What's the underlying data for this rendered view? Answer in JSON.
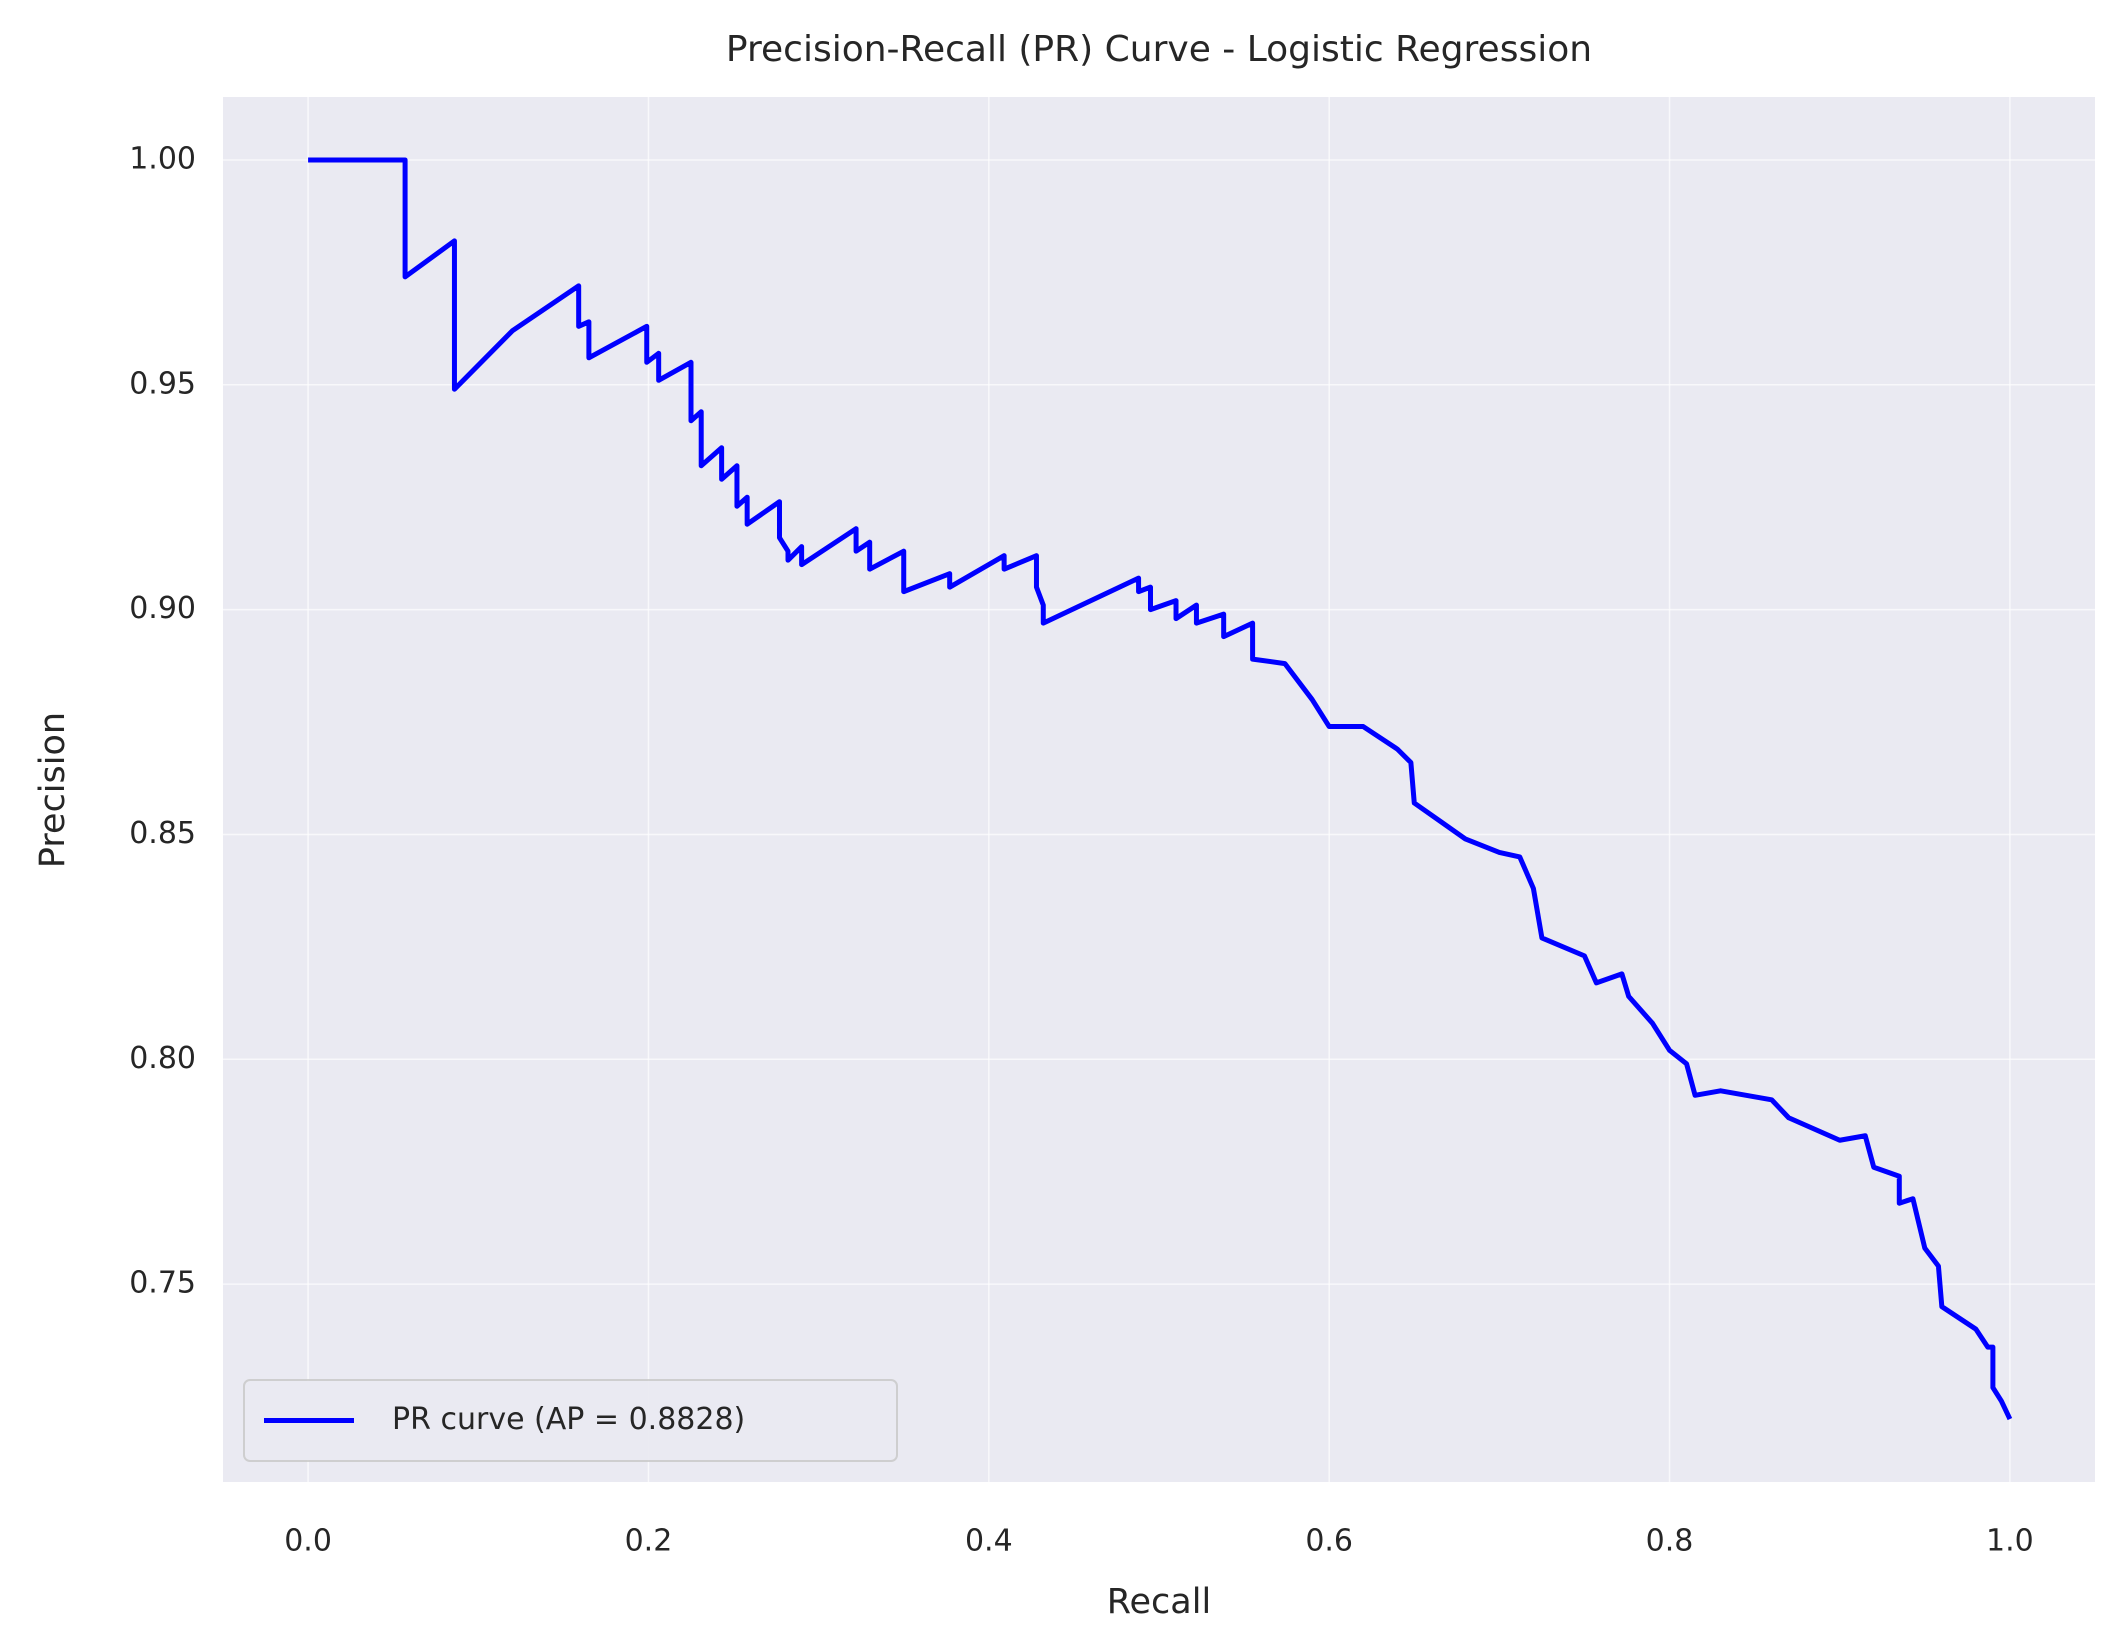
{
  "chart_data": {
    "type": "line",
    "title": "Precision-Recall (PR) Curve - Logistic Regression",
    "xlabel": "Recall",
    "ylabel": "Precision",
    "xlim": [
      -0.05,
      1.05
    ],
    "ylim": [
      0.706,
      1.014
    ],
    "xticks": [
      {
        "value": 0,
        "label": "0.0"
      },
      0.2,
      0.4,
      0.6,
      0.8,
      {
        "value": 1,
        "label": "1.0"
      }
    ],
    "yticks": [
      {
        "value": 0.75,
        "label": "0.75"
      },
      {
        "value": 0.8,
        "label": "0.80"
      },
      0.85,
      {
        "value": 0.9,
        "label": "0.90"
      },
      0.95,
      {
        "value": 1,
        "label": "1.00"
      }
    ],
    "grid": true,
    "legend_loc": "lower left",
    "series": [
      {
        "name": "PR curve (AP = 0.8828)",
        "color": "#0000ff",
        "x": [
          0,
          0.057,
          0.057,
          0.086,
          0.086,
          0.12,
          0.159,
          0.159,
          0.165,
          0.165,
          0.199,
          0.199,
          0.206,
          0.206,
          0.225,
          0.225,
          0.231,
          0.231,
          0.243,
          0.243,
          0.252,
          0.252,
          0.258,
          0.258,
          0.277,
          0.277,
          0.282,
          0.282,
          0.29,
          0.29,
          0.322,
          0.322,
          0.33,
          0.33,
          0.35,
          0.35,
          0.377,
          0.377,
          0.409,
          0.409,
          0.428,
          0.428,
          0.432,
          0.432,
          0.488,
          0.488,
          0.495,
          0.495,
          0.51,
          0.51,
          0.522,
          0.522,
          0.538,
          0.538,
          0.555,
          0.555,
          0.574,
          0.59,
          0.6,
          0.62,
          0.64,
          0.648,
          0.65,
          0.665,
          0.68,
          0.7,
          0.712,
          0.72,
          0.725,
          0.75,
          0.757,
          0.772,
          0.776,
          0.79,
          0.8,
          0.81,
          0.815,
          0.83,
          0.86,
          0.87,
          0.9,
          0.915,
          0.92,
          0.935,
          0.935,
          0.943,
          0.95,
          0.958,
          0.96,
          0.98,
          0.987,
          0.99,
          0.99,
          0.995,
          1.0
        ],
        "values": [
          1,
          1,
          0.974,
          0.982,
          0.949,
          0.962,
          0.972,
          0.963,
          0.964,
          0.956,
          0.963,
          0.955,
          0.957,
          0.951,
          0.955,
          0.942,
          0.944,
          0.932,
          0.936,
          0.929,
          0.932,
          0.923,
          0.925,
          0.919,
          0.924,
          0.916,
          0.913,
          0.911,
          0.914,
          0.91,
          0.918,
          0.913,
          0.915,
          0.909,
          0.913,
          0.904,
          0.908,
          0.905,
          0.912,
          0.909,
          0.912,
          0.905,
          0.901,
          0.897,
          0.907,
          0.904,
          0.905,
          0.9,
          0.902,
          0.898,
          0.901,
          0.897,
          0.899,
          0.894,
          0.897,
          0.889,
          0.888,
          0.88,
          0.874,
          0.874,
          0.869,
          0.866,
          0.857,
          0.853,
          0.849,
          0.846,
          0.845,
          0.838,
          0.827,
          0.823,
          0.817,
          0.819,
          0.814,
          0.808,
          0.802,
          0.799,
          0.792,
          0.793,
          0.791,
          0.787,
          0.782,
          0.783,
          0.776,
          0.774,
          0.768,
          0.769,
          0.758,
          0.754,
          0.745,
          0.74,
          0.736,
          0.736,
          0.727,
          0.724,
          0.72
        ]
      }
    ]
  }
}
